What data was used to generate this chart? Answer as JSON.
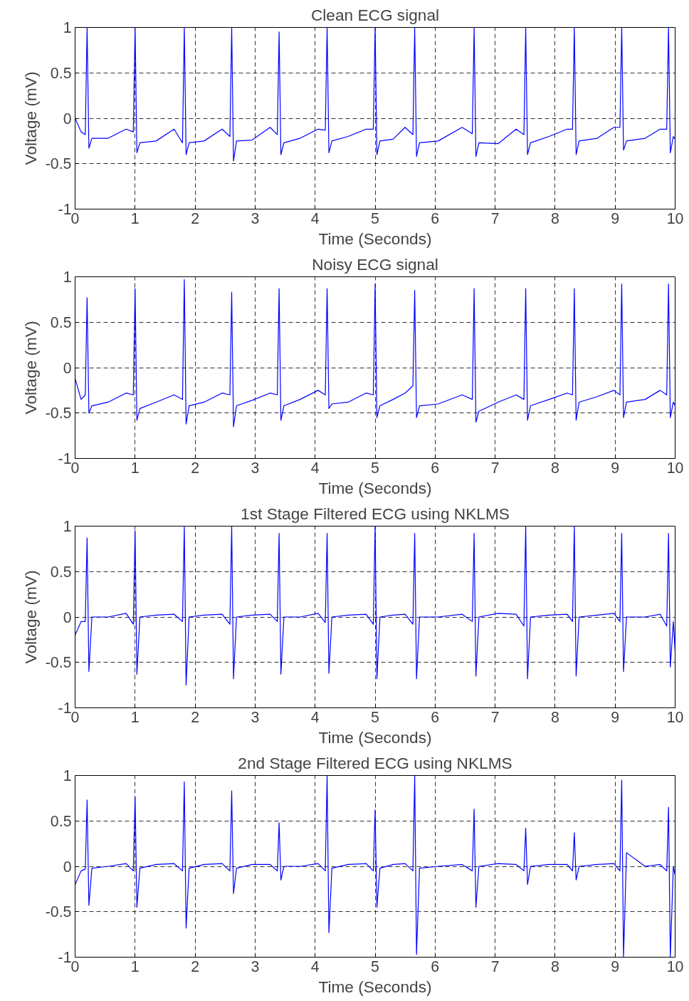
{
  "chart_data": [
    {
      "type": "line",
      "title": "Clean ECG signal",
      "xlabel": "Time (Seconds)",
      "ylabel": "Voltage (mV)",
      "xlim": [
        0,
        10
      ],
      "ylim": [
        -1,
        1
      ],
      "xticks": [
        0,
        1,
        2,
        3,
        4,
        5,
        6,
        7,
        8,
        9,
        10
      ],
      "yticks": [
        -1,
        -0.5,
        0,
        0.5,
        1
      ],
      "grid": true,
      "line_style": "solid",
      "marker": "none",
      "x": [
        0,
        0.1,
        0.17,
        0.2,
        0.23,
        0.28,
        0.55,
        0.85,
        0.97,
        1.0,
        1.03,
        1.08,
        1.35,
        1.65,
        1.79,
        1.82,
        1.85,
        1.9,
        2.15,
        2.45,
        2.58,
        2.61,
        2.64,
        2.69,
        2.95,
        3.25,
        3.37,
        3.4,
        3.43,
        3.48,
        3.75,
        4.05,
        4.17,
        4.2,
        4.23,
        4.28,
        4.55,
        4.85,
        4.97,
        5.0,
        5.03,
        5.08,
        5.3,
        5.5,
        5.63,
        5.66,
        5.69,
        5.74,
        6.05,
        6.45,
        6.62,
        6.65,
        6.68,
        6.73,
        7.05,
        7.35,
        7.48,
        7.51,
        7.54,
        7.59,
        7.9,
        8.2,
        8.29,
        8.32,
        8.35,
        8.4,
        8.7,
        8.98,
        9.08,
        9.11,
        9.14,
        9.19,
        9.5,
        9.75,
        9.86,
        9.89,
        9.92,
        9.97,
        10.0
      ],
      "series": [
        {
          "color": "#0000ff",
          "values": [
            0.0,
            -0.15,
            -0.18,
            1,
            -0.33,
            -0.22,
            -0.22,
            -0.12,
            -0.15,
            1,
            -0.38,
            -0.27,
            -0.25,
            -0.12,
            -0.27,
            1,
            -0.4,
            -0.27,
            -0.25,
            -0.12,
            -0.2,
            1,
            -0.47,
            -0.25,
            -0.24,
            -0.1,
            -0.18,
            0.95,
            -0.4,
            -0.27,
            -0.22,
            -0.12,
            -0.13,
            1,
            -0.38,
            -0.25,
            -0.2,
            -0.12,
            -0.12,
            1,
            -0.4,
            -0.25,
            -0.23,
            -0.1,
            -0.18,
            1,
            -0.42,
            -0.27,
            -0.25,
            -0.1,
            -0.17,
            1,
            -0.42,
            -0.27,
            -0.28,
            -0.12,
            -0.18,
            1,
            -0.4,
            -0.27,
            -0.2,
            -0.12,
            -0.12,
            1,
            -0.4,
            -0.25,
            -0.22,
            -0.1,
            -0.1,
            1,
            -0.35,
            -0.25,
            -0.22,
            -0.12,
            -0.12,
            1,
            -0.38,
            -0.2,
            -0.23
          ]
        }
      ]
    },
    {
      "type": "line",
      "title": "Noisy ECG signal",
      "xlabel": "Time (Seconds)",
      "ylabel": "Voltage (mV)",
      "xlim": [
        0,
        10
      ],
      "ylim": [
        -1,
        1
      ],
      "xticks": [
        0,
        1,
        2,
        3,
        4,
        5,
        6,
        7,
        8,
        9,
        10
      ],
      "yticks": [
        -1,
        -0.5,
        0,
        0.5,
        1
      ],
      "grid": true,
      "line_style": "solid",
      "marker": "none",
      "x": [
        0,
        0.1,
        0.17,
        0.2,
        0.23,
        0.28,
        0.55,
        0.85,
        0.97,
        1.0,
        1.03,
        1.08,
        1.35,
        1.65,
        1.79,
        1.82,
        1.85,
        1.9,
        2.15,
        2.45,
        2.58,
        2.61,
        2.64,
        2.69,
        2.95,
        3.25,
        3.37,
        3.4,
        3.43,
        3.48,
        3.75,
        4.05,
        4.17,
        4.2,
        4.23,
        4.28,
        4.55,
        4.85,
        4.97,
        5.0,
        5.03,
        5.08,
        5.3,
        5.5,
        5.63,
        5.66,
        5.69,
        5.74,
        6.05,
        6.45,
        6.62,
        6.65,
        6.68,
        6.73,
        7.05,
        7.35,
        7.48,
        7.51,
        7.54,
        7.59,
        7.9,
        8.2,
        8.29,
        8.32,
        8.35,
        8.4,
        8.7,
        8.98,
        9.08,
        9.11,
        9.14,
        9.19,
        9.5,
        9.75,
        9.86,
        9.89,
        9.92,
        9.97,
        10.0
      ],
      "series": [
        {
          "color": "#0000ff",
          "values": [
            -0.12,
            -0.35,
            -0.3,
            0.77,
            -0.5,
            -0.42,
            -0.38,
            -0.28,
            -0.3,
            0.87,
            -0.58,
            -0.45,
            -0.38,
            -0.3,
            -0.35,
            0.97,
            -0.62,
            -0.42,
            -0.38,
            -0.28,
            -0.3,
            0.83,
            -0.65,
            -0.42,
            -0.36,
            -0.28,
            -0.3,
            0.87,
            -0.58,
            -0.42,
            -0.35,
            -0.25,
            -0.3,
            0.87,
            -0.45,
            -0.4,
            -0.38,
            -0.28,
            -0.3,
            0.92,
            -0.55,
            -0.42,
            -0.35,
            -0.28,
            -0.2,
            0.85,
            -0.55,
            -0.42,
            -0.4,
            -0.3,
            -0.35,
            0.87,
            -0.6,
            -0.48,
            -0.38,
            -0.3,
            -0.35,
            0.87,
            -0.58,
            -0.42,
            -0.35,
            -0.28,
            -0.3,
            0.87,
            -0.58,
            -0.38,
            -0.32,
            -0.25,
            -0.3,
            0.92,
            -0.55,
            -0.38,
            -0.35,
            -0.25,
            -0.3,
            0.92,
            -0.55,
            -0.38,
            -0.42
          ]
        }
      ]
    },
    {
      "type": "line",
      "title": "1st Stage Filtered ECG using NKLMS",
      "xlabel": "Time (Seconds)",
      "ylabel": "Voltage (mV)",
      "xlim": [
        0,
        10
      ],
      "ylim": [
        -1,
        1
      ],
      "xticks": [
        0,
        1,
        2,
        3,
        4,
        5,
        6,
        7,
        8,
        9,
        10
      ],
      "yticks": [
        -1,
        -0.5,
        0,
        0.5,
        1
      ],
      "grid": true,
      "line_style": "solid",
      "marker": "none",
      "x": [
        0,
        0.1,
        0.17,
        0.2,
        0.23,
        0.28,
        0.55,
        0.85,
        0.97,
        1.0,
        1.03,
        1.08,
        1.35,
        1.65,
        1.79,
        1.82,
        1.85,
        1.9,
        2.15,
        2.45,
        2.58,
        2.61,
        2.64,
        2.69,
        2.95,
        3.25,
        3.37,
        3.4,
        3.43,
        3.48,
        3.75,
        4.05,
        4.17,
        4.2,
        4.23,
        4.28,
        4.55,
        4.85,
        4.97,
        5.0,
        5.03,
        5.08,
        5.3,
        5.5,
        5.63,
        5.66,
        5.69,
        5.74,
        6.05,
        6.45,
        6.62,
        6.65,
        6.68,
        6.73,
        7.05,
        7.35,
        7.48,
        7.51,
        7.54,
        7.59,
        7.9,
        8.2,
        8.29,
        8.32,
        8.35,
        8.4,
        8.7,
        8.98,
        9.08,
        9.11,
        9.14,
        9.19,
        9.5,
        9.75,
        9.86,
        9.89,
        9.92,
        9.97,
        10.0
      ],
      "series": [
        {
          "color": "#0000ff",
          "values": [
            -0.2,
            -0.05,
            -0.05,
            0.87,
            -0.6,
            0.0,
            0.0,
            0.04,
            -0.08,
            0.95,
            -0.63,
            0.0,
            0.02,
            0.03,
            -0.05,
            1.0,
            -0.75,
            0.0,
            0.02,
            0.03,
            -0.08,
            1.0,
            -0.68,
            0.0,
            0.02,
            0.03,
            -0.05,
            0.92,
            -0.63,
            0.0,
            0.0,
            0.04,
            -0.06,
            0.92,
            -0.62,
            0.0,
            0.02,
            0.03,
            -0.08,
            1.0,
            -0.68,
            0.0,
            0.02,
            0.03,
            -0.08,
            0.92,
            -0.68,
            0.0,
            0.0,
            0.03,
            -0.05,
            0.92,
            -0.65,
            0.0,
            0.04,
            0.03,
            -0.1,
            1.0,
            -0.68,
            0.0,
            0.02,
            0.03,
            -0.05,
            1.0,
            -0.65,
            0.0,
            0.02,
            0.04,
            -0.05,
            0.92,
            -0.6,
            0.0,
            0.0,
            0.03,
            -0.1,
            0.92,
            -0.55,
            -0.05,
            -0.38
          ]
        }
      ]
    },
    {
      "type": "line",
      "title": "2nd Stage Filtered ECG using NKLMS",
      "xlabel": "Time (Seconds)",
      "xlim": [
        0,
        10
      ],
      "ylim": [
        -1,
        1
      ],
      "xticks": [
        0,
        1,
        2,
        3,
        4,
        5,
        6,
        7,
        8,
        9,
        10
      ],
      "yticks": [
        -1,
        -0.5,
        0,
        0.5,
        1
      ],
      "grid": true,
      "line_style": "solid",
      "marker": "none",
      "x": [
        0,
        0.1,
        0.17,
        0.2,
        0.23,
        0.28,
        0.55,
        0.85,
        0.97,
        1.0,
        1.03,
        1.08,
        1.35,
        1.65,
        1.79,
        1.82,
        1.85,
        1.9,
        2.15,
        2.45,
        2.58,
        2.61,
        2.64,
        2.69,
        2.95,
        3.25,
        3.37,
        3.4,
        3.43,
        3.48,
        3.75,
        4.05,
        4.17,
        4.2,
        4.23,
        4.28,
        4.55,
        4.85,
        4.97,
        5.0,
        5.03,
        5.08,
        5.3,
        5.5,
        5.63,
        5.66,
        5.69,
        5.74,
        6.05,
        6.45,
        6.62,
        6.65,
        6.68,
        6.73,
        7.05,
        7.35,
        7.48,
        7.51,
        7.54,
        7.59,
        7.9,
        8.2,
        8.29,
        8.32,
        8.35,
        8.4,
        8.7,
        8.98,
        9.08,
        9.11,
        9.14,
        9.19,
        9.5,
        9.75,
        9.86,
        9.89,
        9.92,
        9.97,
        10.0
      ],
      "series": [
        {
          "color": "#0000ff",
          "values": [
            -0.2,
            -0.05,
            -0.03,
            0.73,
            -0.43,
            -0.02,
            0.0,
            0.03,
            -0.05,
            0.77,
            -0.45,
            -0.02,
            0.02,
            0.03,
            -0.05,
            0.93,
            -0.68,
            -0.02,
            0.02,
            0.03,
            -0.05,
            0.83,
            -0.3,
            -0.02,
            0.02,
            0.02,
            -0.05,
            0.48,
            -0.15,
            0.0,
            0.0,
            0.03,
            -0.05,
            1.0,
            -0.73,
            -0.02,
            0.02,
            0.03,
            -0.05,
            0.62,
            -0.45,
            -0.02,
            0.02,
            0.03,
            -0.05,
            1.0,
            -0.97,
            -0.02,
            0.0,
            0.02,
            -0.05,
            0.63,
            -0.45,
            0.0,
            0.03,
            0.02,
            -0.05,
            0.42,
            -0.2,
            0.0,
            0.02,
            0.02,
            -0.05,
            0.37,
            -0.15,
            0.0,
            0.02,
            0.03,
            -0.05,
            0.95,
            -1.0,
            0.15,
            0.0,
            0.02,
            -0.05,
            0.65,
            -1.0,
            0.0,
            -0.1
          ]
        }
      ]
    }
  ]
}
